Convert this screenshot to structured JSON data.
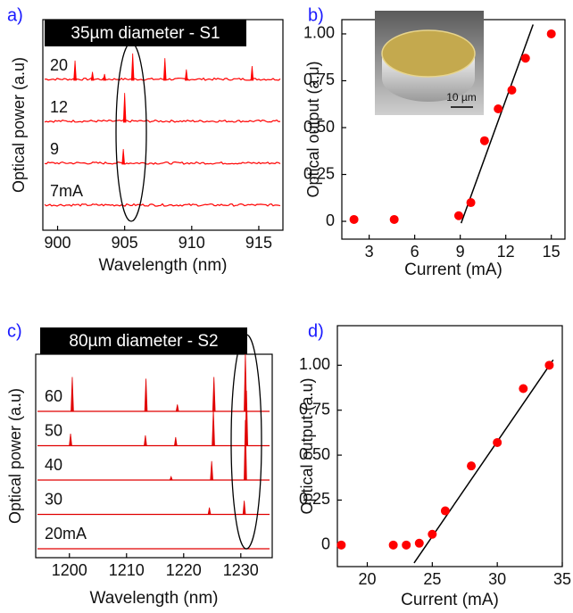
{
  "chart_data": [
    {
      "type": "spectrum",
      "panel_label": "a)",
      "title": "35µm diameter - S1",
      "x_label": "Wavelength (nm)",
      "y_label": "Optical power (a.u)",
      "xlim": [
        898.9,
        916.8
      ],
      "xticks": [
        900,
        905,
        910,
        915
      ],
      "series": [
        {
          "name": "20",
          "color": "#ff0000",
          "x": [
            901.3,
            902.6,
            903.5,
            905.6,
            908.0,
            909.6,
            914.5
          ],
          "values": [
            0.47,
            0.2,
            0.15,
            0.64,
            0.53,
            0.26,
            0.34
          ]
        },
        {
          "name": "12",
          "color": "#ff0000",
          "x": [
            905.0
          ],
          "values": [
            0.7
          ]
        },
        {
          "name": "9",
          "color": "#ff0000",
          "x": [
            904.9
          ],
          "values": [
            0.36
          ]
        },
        {
          "name": "7mA",
          "color": "#ff0000",
          "x": [],
          "values": []
        }
      ]
    },
    {
      "type": "scatter",
      "panel_label": "b)",
      "x_label": "Current (mA)",
      "y_label": "Optical output (a.u)",
      "inset_label": "10 µm",
      "xlim": [
        1.2,
        15.9
      ],
      "xticks": [
        3,
        6,
        9,
        12,
        15
      ],
      "ylim": [
        -0.095,
        1.076
      ],
      "yticks": [
        0,
        0.25,
        {
          "value": 0.5,
          "label": "0.50"
        },
        0.75,
        {
          "value": 1,
          "label": "1.00"
        }
      ],
      "series": [
        {
          "color": "#ff0000",
          "x": [
            2.0,
            4.65,
            8.9,
            9.7,
            10.6,
            11.5,
            12.4,
            13.3,
            15.0
          ],
          "values": [
            0.01,
            0.01,
            0.03,
            0.1,
            0.43,
            0.6,
            0.7,
            0.87,
            1.0
          ]
        }
      ],
      "fit": {
        "color": "#000000",
        "x": [
          9.06,
          13.8
        ],
        "values": [
          -0.01,
          1.05
        ]
      }
    },
    {
      "type": "spectrum",
      "panel_label": "c)",
      "title": "80µm diameter - S2",
      "x_label": "Wavelength (nm)",
      "y_label": "Optical power (a.u)",
      "xlim": [
        1194.1,
        1235.5
      ],
      "xticks": [
        1200,
        1210,
        1220,
        1230
      ],
      "series": [
        {
          "name": "60",
          "color": "#e00000",
          "x": [
            1200.5,
            1213.4,
            1218.9,
            1225.3,
            1230.8
          ],
          "values": [
            1.0,
            0.95,
            0.2,
            1.0,
            1.7
          ]
        },
        {
          "name": "50",
          "color": "#e00000",
          "x": [
            1200.2,
            1213.3,
            1218.6,
            1225.2,
            1231.0
          ],
          "values": [
            0.35,
            0.3,
            0.25,
            1.05,
            1.6
          ]
        },
        {
          "name": "40",
          "color": "#e00000",
          "x": [
            1217.8,
            1224.9,
            1230.8
          ],
          "values": [
            0.1,
            0.55,
            1.75
          ]
        },
        {
          "name": "30",
          "color": "#e00000",
          "x": [
            1224.5,
            1230.6
          ],
          "values": [
            0.2,
            0.4
          ]
        },
        {
          "name": "20mA",
          "color": "#e00000",
          "x": [],
          "values": []
        }
      ]
    },
    {
      "type": "scatter",
      "panel_label": "d)",
      "x_label": "Current (mA)",
      "y_label": "Optical output (a.u)",
      "xlim": [
        17.7,
        35
      ],
      "xticks": [
        20,
        25,
        30,
        35
      ],
      "ylim": [
        -0.12,
        1.22
      ],
      "yticks": [
        0,
        0.25,
        {
          "value": 0.5,
          "label": "0.50"
        },
        0.75,
        {
          "value": 1,
          "label": "1.00"
        }
      ],
      "series": [
        {
          "color": "#ff0000",
          "x": [
            18,
            22,
            23,
            24,
            25,
            26,
            28,
            30,
            32,
            34
          ],
          "values": [
            0,
            0,
            0,
            0.01,
            0.06,
            0.19,
            0.44,
            0.57,
            0.87,
            1.0
          ]
        }
      ],
      "fit": {
        "color": "#000000",
        "x": [
          23.6,
          34.3
        ],
        "values": [
          -0.1,
          1.03
        ]
      }
    }
  ]
}
